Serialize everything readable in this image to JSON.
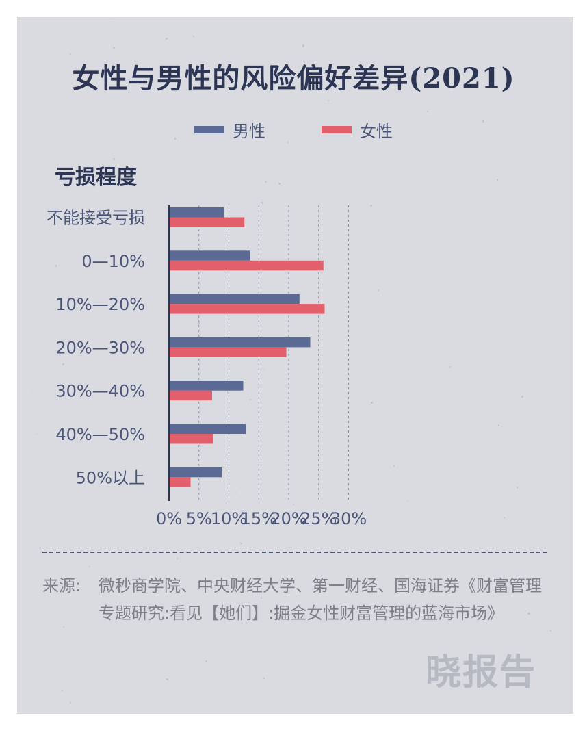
{
  "title": "女性与男性的风险偏好差异(2021)",
  "category_title": "亏损程度",
  "source_label": "来源:",
  "source_text": "微秒商学院、中央财经大学、第一财经、国海证券《财富管理专题研究:看见【她们】:掘金女性财富管理的蓝海市场》",
  "watermark": "晓报告",
  "colors": {
    "male": "#5b6a94",
    "female": "#e2606c",
    "text": "#4a5577",
    "title": "#2c3654"
  },
  "chart_data": {
    "type": "bar",
    "orientation": "horizontal",
    "categories": [
      "不能接受亏损",
      "0—10%",
      "10%—20%",
      "20%—30%",
      "30%—40%",
      "40%—50%",
      "50%以上"
    ],
    "series": [
      {
        "name": "男性",
        "color": "#5b6a94",
        "values": [
          9.2,
          13.5,
          21.8,
          23.6,
          12.4,
          12.8,
          8.8
        ]
      },
      {
        "name": "女性",
        "color": "#e2606c",
        "values": [
          12.6,
          25.8,
          26.0,
          19.6,
          7.2,
          7.4,
          3.6
        ]
      }
    ],
    "x_ticks": [
      "0%",
      "5%",
      "10%",
      "15%",
      "20%",
      "25%",
      "30%"
    ],
    "xlim": [
      0,
      30
    ],
    "grid": "vertical dashed",
    "legend": "top-center"
  }
}
